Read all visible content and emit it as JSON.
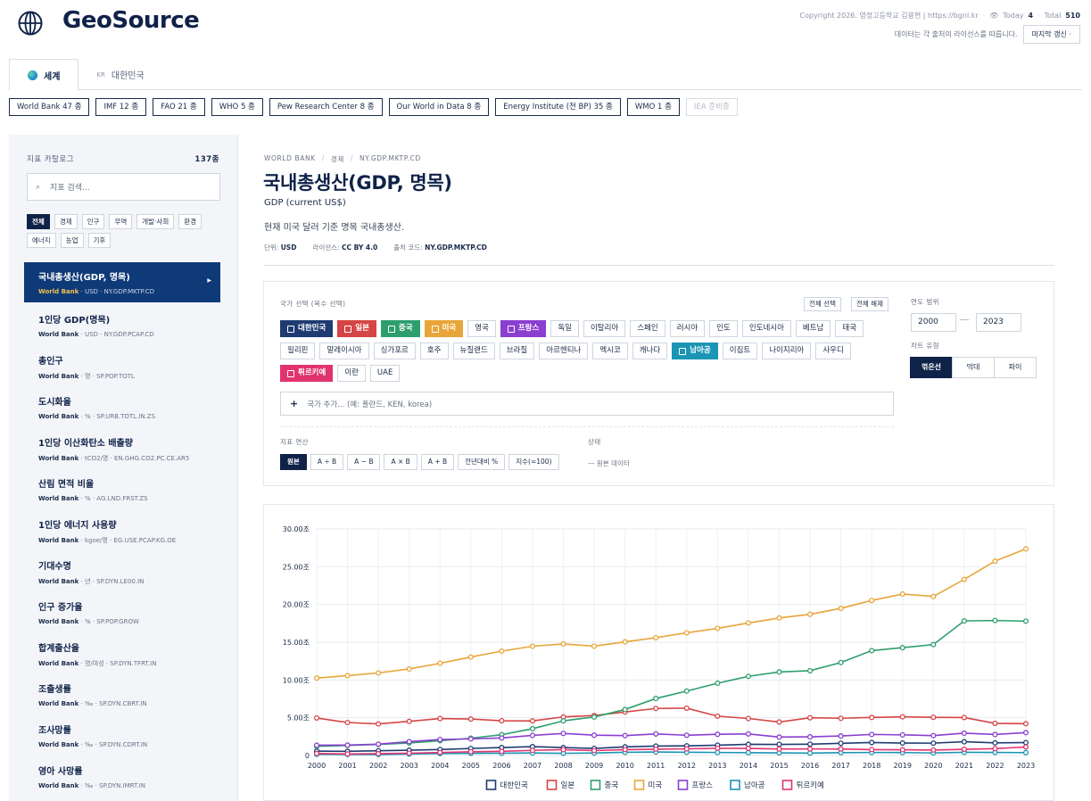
{
  "header": {
    "logo": "GeoSource",
    "copyright": "Copyright 2026. 영정고등학교 김용현 | https://bgnl.kr",
    "today_label": "Today",
    "today_value": "4",
    "total_label": "Total",
    "total_value": "510",
    "license_note": "데이터는 각 출처의 라이선스를 따릅니다.",
    "update_button": "마지막 갱신 ·"
  },
  "tabs": [
    {
      "label": "세계",
      "active": true
    },
    {
      "label": "대한민국",
      "prefix": "KR",
      "active": false
    }
  ],
  "sources": [
    {
      "label": "World Bank  47 종"
    },
    {
      "label": "IMF  12 종"
    },
    {
      "label": "FAO  21 종"
    },
    {
      "label": "WHO  5 종"
    },
    {
      "label": "Pew Research Center  8 종"
    },
    {
      "label": "Our World in Data  8 종"
    },
    {
      "label": "Energy Institute (전 BP)  35 종"
    },
    {
      "label": "WMO  1 종"
    },
    {
      "label": "IEA  준비중",
      "disabled": true
    }
  ],
  "sidebar": {
    "title": "지표 카탈로그",
    "count": "137종",
    "search_placeholder": "지표 검색...",
    "filters": [
      "전체",
      "경제",
      "인구",
      "무역",
      "개발·사회",
      "환경",
      "에너지",
      "농업",
      "기후"
    ],
    "active_filter": "전체",
    "indicators": [
      {
        "name": "국내총생산(GDP, 명목)",
        "source": "World Bank",
        "meta": " · USD · NY.GDP.MKTP.CD",
        "active": true
      },
      {
        "name": "1인당 GDP(명목)",
        "source": "World Bank",
        "meta": " · USD · NY.GDP.PCAP.CD"
      },
      {
        "name": "총인구",
        "source": "World Bank",
        "meta": " · 명 · SP.POP.TOTL"
      },
      {
        "name": "도시화율",
        "source": "World Bank",
        "meta": " · % · SP.URB.TOTL.IN.ZS"
      },
      {
        "name": "1인당 이산화탄소 배출량",
        "source": "World Bank",
        "meta": " · tCO2/명 · EN.GHG.CO2.PC.CE.AR5"
      },
      {
        "name": "산림 면적 비율",
        "source": "World Bank",
        "meta": " · % · AG.LND.FRST.ZS"
      },
      {
        "name": "1인당 에너지 사용량",
        "source": "World Bank",
        "meta": " · kgoe/명 · EG.USE.PCAP.KG.OE"
      },
      {
        "name": "기대수명",
        "source": "World Bank",
        "meta": " · 년 · SP.DYN.LE00.IN"
      },
      {
        "name": "인구 증가율",
        "source": "World Bank",
        "meta": " · % · SP.POP.GROW"
      },
      {
        "name": "합계출산율",
        "source": "World Bank",
        "meta": " · 명/여성 · SP.DYN.TFRT.IN"
      },
      {
        "name": "조출생률",
        "source": "World Bank",
        "meta": " · ‰ · SP.DYN.CBRT.IN"
      },
      {
        "name": "조사망률",
        "source": "World Bank",
        "meta": " · ‰ · SP.DYN.CDRT.IN"
      },
      {
        "name": "영아 사망률",
        "source": "World Bank",
        "meta": " · ‰ · SP.DYN.IMRT.IN"
      }
    ]
  },
  "main": {
    "breadcrumb": [
      "WORLD BANK",
      "경제",
      "NY.GDP.MKTP.CD"
    ],
    "title": "국내총생산(GDP, 명목)",
    "subtitle": "GDP (current US$)",
    "description": "현재 미국 달러 기준 명목 국내총생산.",
    "unit_label": "단위:",
    "unit_value": "USD",
    "license_label": "라이선스:",
    "license_value": "CC BY 4.0",
    "code_label": "출처 코드:",
    "code_value": "NY.GDP.MKTP.CD"
  },
  "controls": {
    "country_label": "국가 선택 (복수 선택)",
    "select_all": "전체 선택",
    "clear_all": "전체 해제",
    "countries": [
      {
        "label": "대한민국",
        "selected": true,
        "color": "#1f3c72"
      },
      {
        "label": "일본",
        "selected": true,
        "color": "#d64545"
      },
      {
        "label": "중국",
        "selected": true,
        "color": "#2e9e6e"
      },
      {
        "label": "미국",
        "selected": true,
        "color": "#e8a53a"
      },
      {
        "label": "영국"
      },
      {
        "label": "프랑스",
        "selected": true,
        "color": "#8a3fd1"
      },
      {
        "label": "독일"
      },
      {
        "label": "이탈리아"
      },
      {
        "label": "스페인"
      },
      {
        "label": "러시아"
      },
      {
        "label": "인도"
      },
      {
        "label": "인도네시아"
      },
      {
        "label": "베트남"
      },
      {
        "label": "태국"
      },
      {
        "label": "필리핀"
      },
      {
        "label": "말레이시아"
      },
      {
        "label": "싱가포르"
      },
      {
        "label": "호주"
      },
      {
        "label": "뉴질랜드"
      },
      {
        "label": "브라질"
      },
      {
        "label": "아르헨티나"
      },
      {
        "label": "멕시코"
      },
      {
        "label": "캐나다"
      },
      {
        "label": "남아공",
        "selected": true,
        "color": "#1b95b5"
      },
      {
        "label": "이집트"
      },
      {
        "label": "나이지리아"
      },
      {
        "label": "사우디"
      },
      {
        "label": "튀르키예",
        "selected": true,
        "color": "#e0336f"
      },
      {
        "label": "이란"
      },
      {
        "label": "UAE"
      }
    ],
    "add_country_placeholder": "국가 추가... (예: 폴란드, KEN, korea)",
    "year_range_label": "연도 범위",
    "year_from": "2000",
    "year_to": "2023",
    "chart_type_label": "차트 유형",
    "chart_types": [
      "꺾은선",
      "막대",
      "파이"
    ],
    "active_chart_type": "꺾은선",
    "ops_label": "지표 연산",
    "ops": [
      "원본",
      "A ÷ B",
      "A − B",
      "A × B",
      "A + B",
      "전년대비 %",
      "지수(=100)"
    ],
    "active_op": "원본",
    "status_label": "상태",
    "status_value": "— 원본 데이터"
  },
  "chart_data": {
    "type": "line",
    "x": [
      2000,
      2001,
      2002,
      2003,
      2004,
      2005,
      2006,
      2007,
      2008,
      2009,
      2010,
      2011,
      2012,
      2013,
      2014,
      2015,
      2016,
      2017,
      2018,
      2019,
      2020,
      2021,
      2022,
      2023
    ],
    "ylim": [
      0,
      30
    ],
    "yticks": [
      "0",
      "5.00조",
      "10.00조",
      "15.00조",
      "20.00조",
      "25.00조",
      "30.00조"
    ],
    "ytick_values": [
      0,
      5,
      10,
      15,
      20,
      25,
      30
    ],
    "series": [
      {
        "name": "대한민국",
        "color": "#1f3c72",
        "values": [
          0.58,
          0.55,
          0.63,
          0.7,
          0.79,
          0.93,
          1.05,
          1.17,
          1.05,
          0.94,
          1.14,
          1.25,
          1.28,
          1.37,
          1.48,
          1.47,
          1.5,
          1.62,
          1.72,
          1.65,
          1.64,
          1.82,
          1.67,
          1.71
        ]
      },
      {
        "name": "일본",
        "color": "#d64545",
        "values": [
          4.97,
          4.37,
          4.18,
          4.52,
          4.89,
          4.83,
          4.6,
          4.58,
          5.11,
          5.29,
          5.76,
          6.23,
          6.27,
          5.21,
          4.9,
          4.44,
          5.0,
          4.93,
          5.04,
          5.12,
          5.06,
          5.03,
          4.26,
          4.21
        ]
      },
      {
        "name": "중국",
        "color": "#2e9e6e",
        "values": [
          1.21,
          1.34,
          1.47,
          1.66,
          1.96,
          2.29,
          2.75,
          3.55,
          4.59,
          5.1,
          6.09,
          7.55,
          8.53,
          9.57,
          10.48,
          11.06,
          11.23,
          12.31,
          13.89,
          14.28,
          14.69,
          17.82,
          17.88,
          17.79
        ]
      },
      {
        "name": "미국",
        "color": "#e8a53a",
        "values": [
          10.25,
          10.58,
          10.94,
          11.46,
          12.21,
          13.04,
          13.82,
          14.47,
          14.77,
          14.48,
          15.05,
          15.6,
          16.25,
          16.84,
          17.55,
          18.21,
          18.7,
          19.48,
          20.53,
          21.38,
          21.06,
          23.32,
          25.74,
          27.36
        ]
      },
      {
        "name": "프랑스",
        "color": "#8a3fd1",
        "values": [
          1.36,
          1.38,
          1.5,
          1.84,
          2.12,
          2.2,
          2.32,
          2.66,
          2.92,
          2.69,
          2.64,
          2.86,
          2.68,
          2.81,
          2.86,
          2.44,
          2.47,
          2.59,
          2.79,
          2.73,
          2.64,
          2.96,
          2.78,
          3.03
        ]
      },
      {
        "name": "남아공",
        "color": "#1b95b5",
        "values": [
          0.15,
          0.14,
          0.13,
          0.2,
          0.26,
          0.29,
          0.3,
          0.33,
          0.29,
          0.33,
          0.42,
          0.46,
          0.43,
          0.4,
          0.38,
          0.35,
          0.32,
          0.38,
          0.4,
          0.39,
          0.34,
          0.42,
          0.41,
          0.38
        ]
      },
      {
        "name": "튀르키예",
        "color": "#e0336f",
        "values": [
          0.27,
          0.2,
          0.24,
          0.31,
          0.4,
          0.5,
          0.55,
          0.68,
          0.77,
          0.65,
          0.78,
          0.84,
          0.88,
          0.96,
          0.94,
          0.86,
          0.87,
          0.86,
          0.78,
          0.76,
          0.72,
          0.82,
          0.91,
          1.13
        ]
      }
    ]
  }
}
